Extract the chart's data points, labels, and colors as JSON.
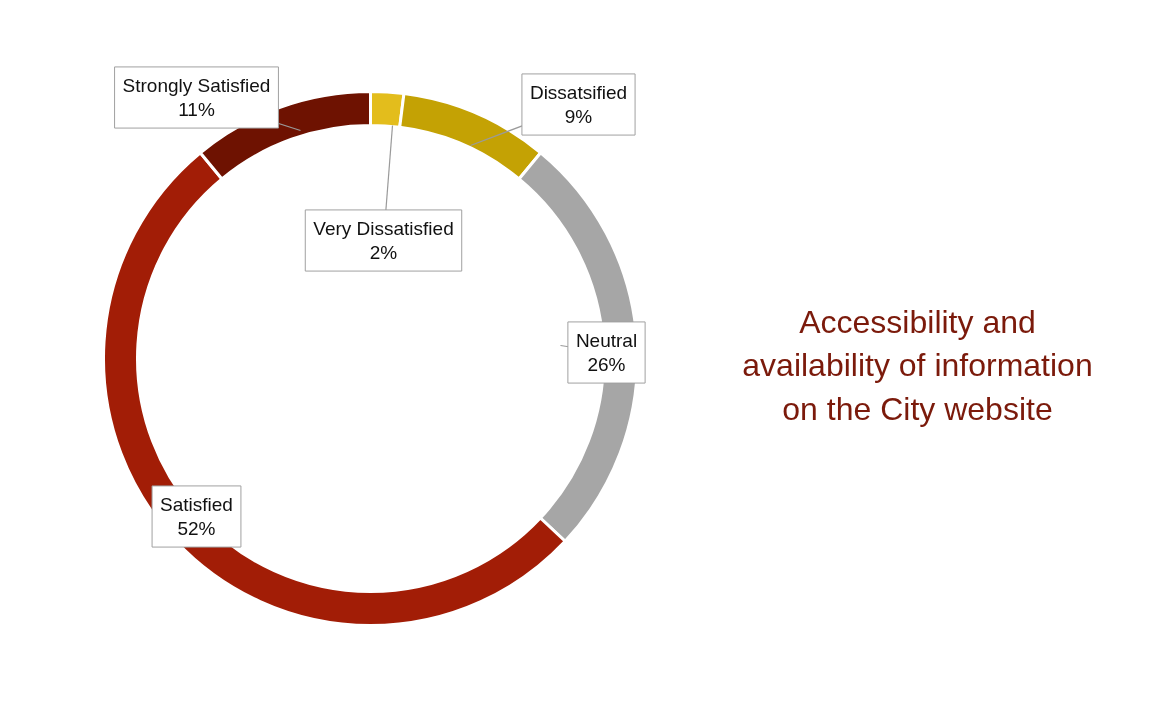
{
  "chart_data": {
    "type": "donut",
    "title": "Accessibility and\navailability of information\non the City website",
    "categories": [
      "Very Dissatisfied",
      "Dissatsified",
      "Neutral",
      "Satisfied",
      "Strongly Satisfied"
    ],
    "values": [
      2,
      9,
      26,
      52,
      11
    ],
    "colors": [
      "#e3bd1c",
      "#c4a204",
      "#a6a6a6",
      "#a21d06",
      "#6e1201"
    ],
    "value_labels": [
      "2%",
      "9%",
      "26%",
      "52%",
      "11%"
    ],
    "legend": false
  }
}
